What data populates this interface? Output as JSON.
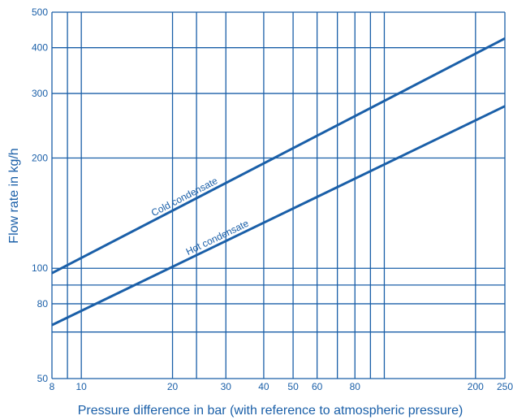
{
  "colors": {
    "line": "#1a5fa8",
    "grid": "#1a5fa8",
    "text": "#1a5fa8",
    "background": "#ffffff"
  },
  "chart_data": {
    "type": "line",
    "title": "",
    "xlabel": "Pressure difference in bar (with reference to atmospheric pressure)",
    "ylabel": "Flow rate in kg/h",
    "x_scale": "log",
    "y_scale": "log",
    "xlim": [
      8,
      250
    ],
    "ylim": [
      50,
      500
    ],
    "x_ticks": [
      {
        "value": 8,
        "label": "8"
      },
      {
        "value": 10,
        "label": "10"
      },
      {
        "value": 20,
        "label": "20"
      },
      {
        "value": 30,
        "label": "30"
      },
      {
        "value": 40,
        "label": "40"
      },
      {
        "value": 50,
        "label": "50"
      },
      {
        "value": 60,
        "label": "60"
      },
      {
        "value": 80,
        "label": "80"
      },
      {
        "value": 200,
        "label": "200"
      },
      {
        "value": 250,
        "label": "250"
      }
    ],
    "y_ticks": [
      {
        "value": 50,
        "label": "50"
      },
      {
        "value": 80,
        "label": "80"
      },
      {
        "value": 100,
        "label": "100"
      },
      {
        "value": 200,
        "label": "200"
      },
      {
        "value": 300,
        "label": "300"
      },
      {
        "value": 400,
        "label": "400"
      },
      {
        "value": 500,
        "label": "500"
      }
    ],
    "x_grid": [
      8,
      9,
      10,
      20,
      24,
      30,
      40,
      50,
      60,
      70,
      80,
      90,
      100,
      200,
      250
    ],
    "y_grid": [
      50,
      67,
      80,
      90,
      100,
      200,
      300,
      400,
      500
    ],
    "grid": true,
    "series": [
      {
        "name": "Cold condensate",
        "x": [
          8,
          250
        ],
        "y": [
          97,
          424
        ]
      },
      {
        "name": "Hot condensate",
        "x": [
          8,
          250
        ],
        "y": [
          70,
          277
        ]
      }
    ]
  }
}
